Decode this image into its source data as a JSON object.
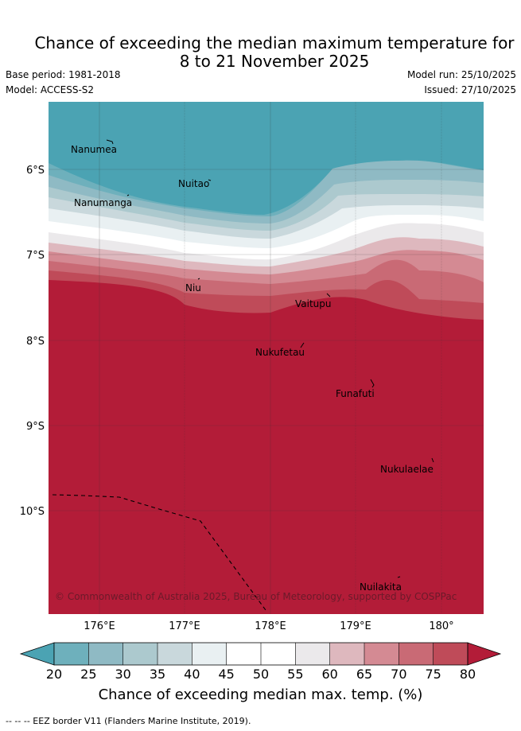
{
  "title_line1": "Chance of exceeding the median maximum temperature for",
  "title_line2": "8 to 21 November 2025",
  "base_period": "Base period: 1981-2018",
  "model": "Model: ACCESS-S2",
  "model_run": "Model run: 25/10/2025",
  "issued": "Issued: 27/10/2025",
  "lon_labels": [
    "176°E",
    "177°E",
    "178°E",
    "179°E",
    "180°"
  ],
  "lat_labels": [
    "6°S",
    "7°S",
    "8°S",
    "9°S",
    "10°S"
  ],
  "places": [
    "Nanumea",
    "Nuitao",
    "Nanumanga",
    "Niu",
    "Vaitupu",
    "Nukufetau",
    "Funafuti",
    "Nukulaelae",
    "Nuilakita"
  ],
  "copyright": "© Commonwealth of Australia 2025, Bureau of Meteorology, supported by COSPPac",
  "colorbar": {
    "ticks": [
      "20",
      "25",
      "30",
      "35",
      "40",
      "45",
      "50",
      "55",
      "60",
      "65",
      "70",
      "75",
      "80"
    ],
    "colors": [
      "#4ba3b3",
      "#6eb0bc",
      "#8fbac4",
      "#acc9ce",
      "#c9d8dc",
      "#e9f0f2",
      "#ffffff",
      "#ffffff",
      "#ebe9eb",
      "#deb8be",
      "#d48a93",
      "#c96a75",
      "#bf4b59",
      "#b31c38"
    ],
    "title": "Chance of exceeding median max. temp. (%)"
  },
  "footnote": "--  --  -- EEZ border V11 (Flanders Marine Institute, 2019)."
}
